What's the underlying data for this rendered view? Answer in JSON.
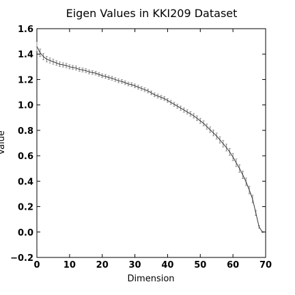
{
  "chart_data": {
    "type": "line",
    "title": "Eigen Values in KKI209 Dataset",
    "xlabel": "Dimension",
    "ylabel": "Value",
    "xlim": [
      0,
      70
    ],
    "ylim": [
      -0.2,
      1.6
    ],
    "xticks": [
      "0",
      "10",
      "20",
      "30",
      "40",
      "50",
      "60",
      "70"
    ],
    "yticks": [
      "1.6",
      "1.4",
      "1.2",
      "1.0",
      "0.8",
      "0.6",
      "0.4",
      "0.2",
      "0.0",
      "−0.2"
    ],
    "grid": false,
    "legend": "none",
    "series": [
      {
        "color": "#333333",
        "error_color": "#888888",
        "x": [
          0,
          1,
          2,
          3,
          4,
          5,
          6,
          7,
          8,
          9,
          10,
          11,
          12,
          13,
          14,
          15,
          16,
          17,
          18,
          19,
          20,
          21,
          22,
          23,
          24,
          25,
          26,
          27,
          28,
          29,
          30,
          31,
          32,
          33,
          34,
          35,
          36,
          37,
          38,
          39,
          40,
          41,
          42,
          43,
          44,
          45,
          46,
          47,
          48,
          49,
          50,
          51,
          52,
          53,
          54,
          55,
          56,
          57,
          58,
          59,
          60,
          61,
          62,
          63,
          64,
          65,
          66,
          67,
          68,
          69
        ],
        "values": [
          1.46,
          1.41,
          1.38,
          1.36,
          1.35,
          1.34,
          1.33,
          1.32,
          1.315,
          1.31,
          1.3,
          1.295,
          1.29,
          1.28,
          1.275,
          1.27,
          1.26,
          1.255,
          1.25,
          1.24,
          1.23,
          1.225,
          1.215,
          1.21,
          1.2,
          1.19,
          1.185,
          1.175,
          1.165,
          1.16,
          1.15,
          1.14,
          1.13,
          1.12,
          1.11,
          1.095,
          1.08,
          1.07,
          1.06,
          1.05,
          1.035,
          1.02,
          1.005,
          0.99,
          0.975,
          0.96,
          0.945,
          0.93,
          0.915,
          0.895,
          0.875,
          0.855,
          0.83,
          0.805,
          0.78,
          0.755,
          0.725,
          0.695,
          0.665,
          0.63,
          0.59,
          0.545,
          0.5,
          0.45,
          0.395,
          0.33,
          0.26,
          0.15,
          0.04,
          0.0
        ],
        "errors": [
          0.04,
          0.03,
          0.025,
          0.022,
          0.02,
          0.02,
          0.018,
          0.018,
          0.017,
          0.017,
          0.016,
          0.016,
          0.016,
          0.015,
          0.015,
          0.015,
          0.015,
          0.015,
          0.015,
          0.015,
          0.015,
          0.015,
          0.015,
          0.015,
          0.015,
          0.015,
          0.015,
          0.015,
          0.015,
          0.015,
          0.015,
          0.015,
          0.015,
          0.015,
          0.015,
          0.015,
          0.015,
          0.015,
          0.015,
          0.015,
          0.015,
          0.016,
          0.016,
          0.016,
          0.017,
          0.017,
          0.017,
          0.018,
          0.018,
          0.019,
          0.02,
          0.02,
          0.021,
          0.022,
          0.023,
          0.024,
          0.025,
          0.026,
          0.027,
          0.028,
          0.029,
          0.03,
          0.03,
          0.03,
          0.03,
          0.03,
          0.03,
          0.02,
          0.01,
          0.005
        ]
      }
    ]
  }
}
